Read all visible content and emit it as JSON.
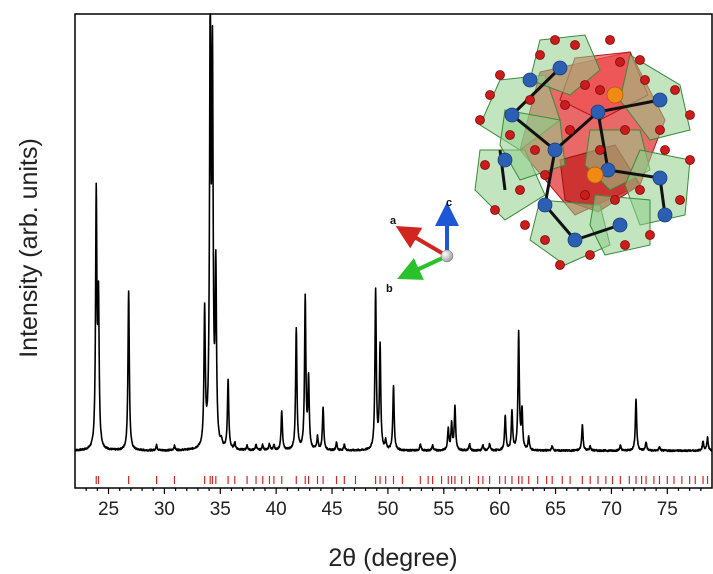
{
  "chart_data": {
    "type": "line",
    "xlabel": "2θ (degree)",
    "ylabel": "Intensity (arb. units)",
    "xlim": [
      22,
      79
    ],
    "ylim": [
      0,
      1.05
    ],
    "xticks": [
      25,
      30,
      35,
      40,
      45,
      50,
      55,
      60,
      65,
      70,
      75
    ],
    "grid": false,
    "legend": "none",
    "series": [
      {
        "color": "#000000",
        "baseline": 0.04,
        "peaks": [
          [
            23.9,
            0.58
          ],
          [
            24.1,
            0.33
          ],
          [
            26.8,
            0.37
          ],
          [
            29.3,
            0.012
          ],
          [
            30.9,
            0.01
          ],
          [
            33.6,
            0.31
          ],
          [
            34.1,
            0.98
          ],
          [
            34.3,
            0.85
          ],
          [
            34.6,
            0.4
          ],
          [
            35.1,
            0.012
          ],
          [
            35.7,
            0.16
          ],
          [
            36.3,
            0.015
          ],
          [
            37.4,
            0.01
          ],
          [
            38.2,
            0.013
          ],
          [
            38.8,
            0.013
          ],
          [
            39.4,
            0.015
          ],
          [
            39.8,
            0.012
          ],
          [
            40.5,
            0.09
          ],
          [
            41.8,
            0.28
          ],
          [
            42.6,
            0.35
          ],
          [
            42.9,
            0.16
          ],
          [
            43.7,
            0.03
          ],
          [
            44.2,
            0.1
          ],
          [
            45.4,
            0.018
          ],
          [
            46.1,
            0.013
          ],
          [
            48.9,
            0.37
          ],
          [
            49.3,
            0.24
          ],
          [
            49.8,
            0.02
          ],
          [
            50.5,
            0.15
          ],
          [
            52.9,
            0.014
          ],
          [
            54.0,
            0.012
          ],
          [
            55.4,
            0.05
          ],
          [
            55.7,
            0.06
          ],
          [
            56.0,
            0.1
          ],
          [
            57.3,
            0.015
          ],
          [
            58.5,
            0.013
          ],
          [
            59.1,
            0.015
          ],
          [
            60.5,
            0.08
          ],
          [
            61.1,
            0.09
          ],
          [
            61.7,
            0.27
          ],
          [
            62.0,
            0.09
          ],
          [
            62.6,
            0.03
          ],
          [
            64.7,
            0.01
          ],
          [
            67.4,
            0.06
          ],
          [
            68.1,
            0.01
          ],
          [
            70.8,
            0.012
          ],
          [
            72.2,
            0.12
          ],
          [
            73.1,
            0.02
          ],
          [
            74.3,
            0.008
          ],
          [
            78.2,
            0.022
          ],
          [
            78.6,
            0.03
          ]
        ]
      }
    ],
    "reflection_markers": {
      "color": "#d62728",
      "positions": [
        23.9,
        24.1,
        26.8,
        29.3,
        30.9,
        33.6,
        34.1,
        34.3,
        34.6,
        35.7,
        36.3,
        37.4,
        38.2,
        38.8,
        39.4,
        39.8,
        40.5,
        41.8,
        42.6,
        42.9,
        43.7,
        44.2,
        45.4,
        46.1,
        47.1,
        48.9,
        49.3,
        49.8,
        50.5,
        51.3,
        52.9,
        53.6,
        54.0,
        54.8,
        55.4,
        55.7,
        56.0,
        56.6,
        57.3,
        58.1,
        58.5,
        59.1,
        60.0,
        60.5,
        61.1,
        61.7,
        62.0,
        62.6,
        63.4,
        64.2,
        64.7,
        65.6,
        66.3,
        67.4,
        68.1,
        68.8,
        69.5,
        70.1,
        70.8,
        71.6,
        72.2,
        72.7,
        73.1,
        73.8,
        74.3,
        75.0,
        75.6,
        76.3,
        77.0,
        77.5,
        78.2,
        78.6
      ]
    },
    "inset": {
      "crystal_axes": [
        "a",
        "b",
        "c"
      ],
      "colors": {
        "axis_a": "#d0261f",
        "axis_b": "#29c22b",
        "axis_c": "#1d57d6",
        "octahedron": "#8fd08a",
        "polyhedron": "#e23535",
        "atom_b_site": "#2c5fb2",
        "atom_oxygen": "#cc1b1b",
        "atom_a_site": "#f08a14"
      }
    }
  }
}
